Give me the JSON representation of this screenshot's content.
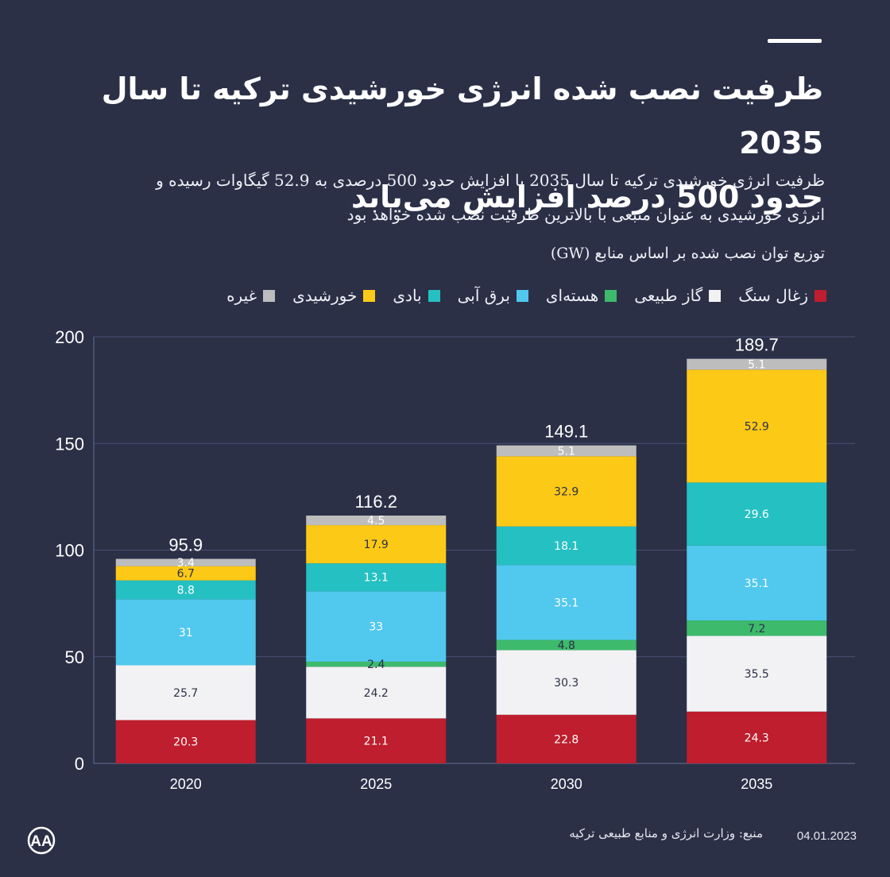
{
  "header": {
    "title_line1": "ظرفیت نصب شده انرژی خورشیدی ترکیه تا سال 2035",
    "title_line2": "حدود 500 درصد افزایش می‌یابد",
    "subtitle_line1": "ظرفیت انرژی خورشیدی ترکیه تا سال 2035 با افزایش حدود 500 درصدی به 52.9 گیگاوات رسیده و",
    "subtitle_line2": "انرژی خورشیدی به عنوان منبعی با بالاترین ظرفیت نصب شده خواهد بود"
  },
  "unit_label": "توزیع توان نصب شده بر اساس منابع (GW)",
  "footer": {
    "source": "منبع: وزارت انرژی و منابع طبیعی ترکیه",
    "date": "04.01.2023",
    "logo_text": "AA"
  },
  "chart_data": {
    "type": "bar",
    "stacked": true,
    "categories": [
      "2020",
      "2025",
      "2030",
      "2035"
    ],
    "series": [
      {
        "name": "زغال سنگ",
        "color": "#be1e2d",
        "label_color": "#ffffff",
        "values": [
          20.3,
          21.1,
          22.8,
          24.3
        ]
      },
      {
        "name": "گاز طبیعی",
        "color": "#f2f2f5",
        "label_color": "#2b3047",
        "values": [
          25.7,
          24.2,
          30.3,
          35.5
        ]
      },
      {
        "name": "هسته‌ای",
        "color": "#3dba6b",
        "label_color": "#2b3047",
        "values": [
          null,
          2.4,
          4.8,
          7.2
        ]
      },
      {
        "name": "برق آبی",
        "color": "#51c8ee",
        "label_color": "#ffffff",
        "values": [
          31,
          33,
          35.1,
          35.1
        ]
      },
      {
        "name": "بادی",
        "color": "#25c0c2",
        "label_color": "#ffffff",
        "values": [
          8.8,
          13.1,
          18.1,
          29.6
        ]
      },
      {
        "name": "خورشیدی",
        "color": "#fcc917",
        "label_color": "#2b3047",
        "values": [
          6.7,
          17.9,
          32.9,
          52.9
        ]
      },
      {
        "name": "غیره",
        "color": "#bdbdbd",
        "label_color": "#ffffff",
        "values": [
          3.4,
          4.5,
          5.1,
          5.1
        ]
      }
    ],
    "totals": [
      "95.9",
      "116.2",
      "149.1",
      "189.7"
    ],
    "y_ticks": [
      "0",
      "50",
      "100",
      "150",
      "200"
    ],
    "ylim": [
      0,
      200
    ],
    "legend_position": "top-right",
    "grid": true
  }
}
